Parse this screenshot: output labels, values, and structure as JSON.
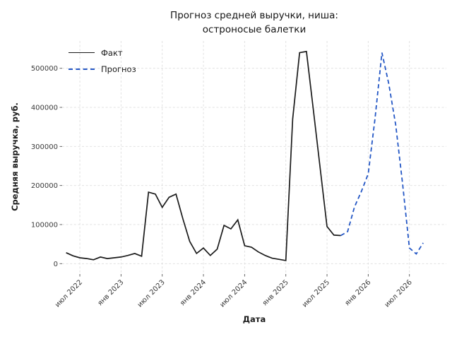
{
  "title": {
    "line1": "Прогноз средней выручки, ниша:",
    "line2": "остроносые балетки"
  },
  "axis_labels": {
    "x": "Дата",
    "y": "Средняя выручка, руб."
  },
  "legend": {
    "fact_label": "Факт",
    "forecast_label": "Прогноз"
  },
  "colors": {
    "fact": "#1a1a1a",
    "forecast": "#2457c5",
    "grid": "#dedede",
    "tick_text": "#3a3a3a",
    "tick_mark": "#555555"
  },
  "chart_data": {
    "type": "line",
    "title": "Прогноз средней выручки, ниша: остроносые балетки",
    "xlabel": "Дата",
    "ylabel": "Средняя выручка, руб.",
    "ylim": [
      0,
      560000
    ],
    "grid": true,
    "legend_position": "upper left",
    "y_ticks": [
      0,
      100000,
      200000,
      300000,
      400000,
      500000
    ],
    "x_ticks": [
      {
        "month": "2022-07",
        "label": "июл 2022"
      },
      {
        "month": "2023-01",
        "label": "янв 2023"
      },
      {
        "month": "2023-07",
        "label": "июл 2023"
      },
      {
        "month": "2024-01",
        "label": "янв 2024"
      },
      {
        "month": "2024-07",
        "label": "июл 2024"
      },
      {
        "month": "2025-01",
        "label": "янв 2025"
      },
      {
        "month": "2025-07",
        "label": "июл 2025"
      },
      {
        "month": "2026-01",
        "label": "янв 2026"
      },
      {
        "month": "2026-07",
        "label": "июл 2026"
      }
    ],
    "series": [
      {
        "name": "Факт",
        "color": "#1a1a1a",
        "line_style": "solid",
        "data": [
          [
            "2022-05",
            28000
          ],
          [
            "2022-06",
            20000
          ],
          [
            "2022-07",
            15000
          ],
          [
            "2022-08",
            13000
          ],
          [
            "2022-09",
            10000
          ],
          [
            "2022-10",
            17000
          ],
          [
            "2022-11",
            13000
          ],
          [
            "2022-12",
            15000
          ],
          [
            "2023-01",
            17000
          ],
          [
            "2023-02",
            21000
          ],
          [
            "2023-03",
            26000
          ],
          [
            "2023-04",
            19000
          ],
          [
            "2023-05",
            183000
          ],
          [
            "2023-06",
            178000
          ],
          [
            "2023-07",
            144000
          ],
          [
            "2023-08",
            170000
          ],
          [
            "2023-09",
            178000
          ],
          [
            "2023-10",
            115000
          ],
          [
            "2023-11",
            57000
          ],
          [
            "2023-12",
            26000
          ],
          [
            "2024-01",
            40000
          ],
          [
            "2024-02",
            21000
          ],
          [
            "2024-03",
            37000
          ],
          [
            "2024-04",
            98000
          ],
          [
            "2024-05",
            89000
          ],
          [
            "2024-06",
            112000
          ],
          [
            "2024-07",
            46000
          ],
          [
            "2024-08",
            42000
          ],
          [
            "2024-09",
            30000
          ],
          [
            "2024-10",
            21000
          ],
          [
            "2024-11",
            14000
          ],
          [
            "2024-12",
            11000
          ],
          [
            "2025-01",
            8000
          ],
          [
            "2025-02",
            370000
          ],
          [
            "2025-03",
            540000
          ],
          [
            "2025-04",
            543000
          ],
          [
            "2025-05",
            395000
          ],
          [
            "2025-06",
            245000
          ],
          [
            "2025-07",
            95000
          ],
          [
            "2025-08",
            73000
          ],
          [
            "2025-09",
            72000
          ]
        ]
      },
      {
        "name": "Прогноз",
        "color": "#2457c5",
        "line_style": "dashed",
        "data": [
          [
            "2025-09",
            72000
          ],
          [
            "2025-10",
            82000
          ],
          [
            "2025-11",
            145000
          ],
          [
            "2025-12",
            185000
          ],
          [
            "2026-01",
            230000
          ],
          [
            "2026-02",
            373000
          ],
          [
            "2026-03",
            540000
          ],
          [
            "2026-04",
            460000
          ],
          [
            "2026-05",
            355000
          ],
          [
            "2026-06",
            205000
          ],
          [
            "2026-07",
            40000
          ],
          [
            "2026-08",
            25000
          ],
          [
            "2026-09",
            53000
          ]
        ]
      }
    ]
  }
}
